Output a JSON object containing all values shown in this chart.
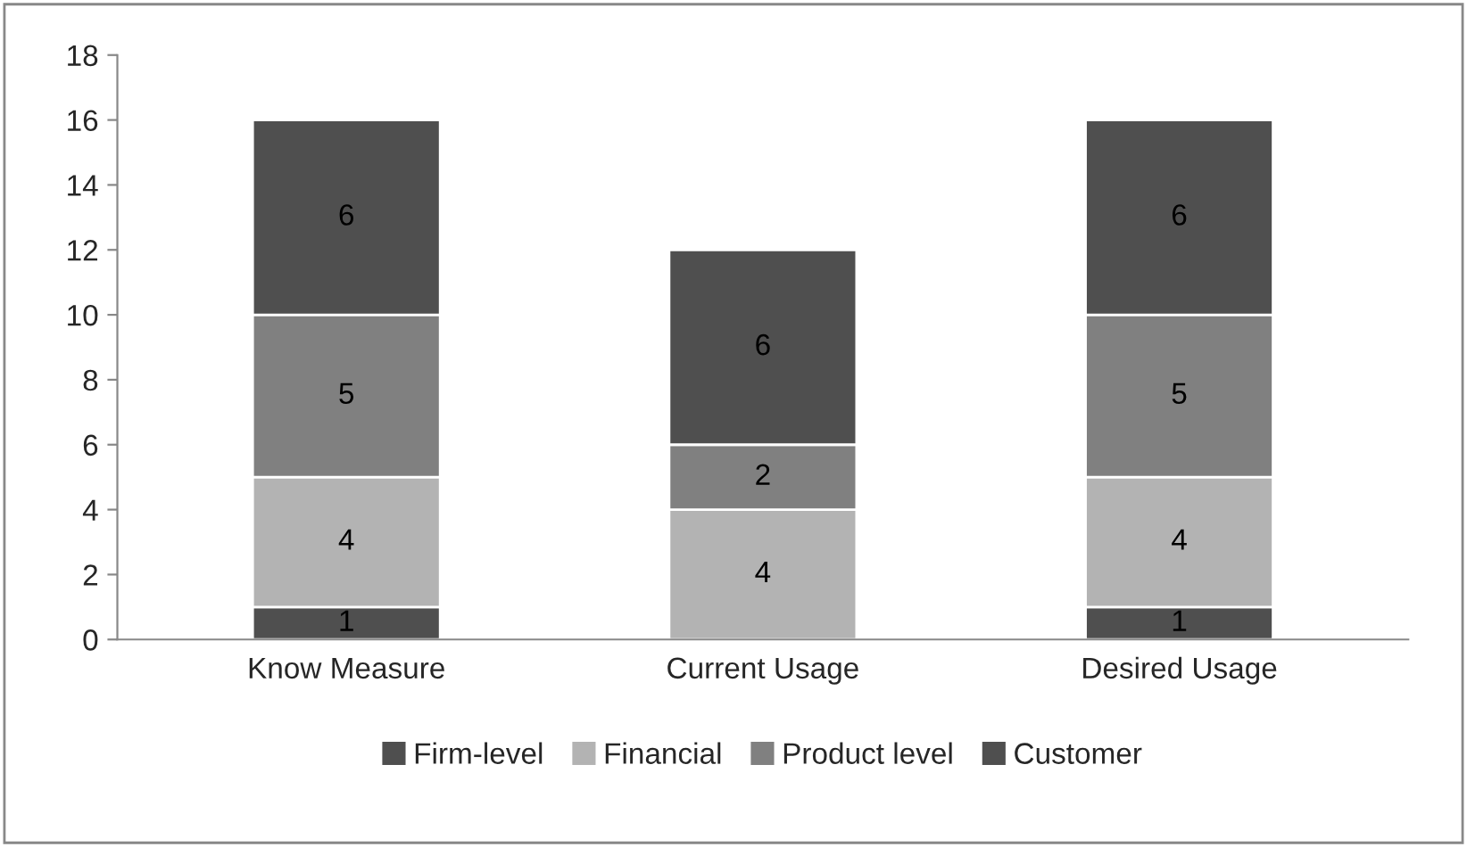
{
  "chart_data": {
    "type": "bar",
    "stacked": true,
    "categories": [
      "Know Measure",
      "Current Usage",
      "Desired Usage"
    ],
    "series": [
      {
        "name": "Firm-level",
        "color": "#4f4f4f",
        "values": [
          1,
          0,
          1
        ],
        "value_labels": [
          "1",
          null,
          "1"
        ]
      },
      {
        "name": "Financial",
        "color": "#b3b3b3",
        "values": [
          4,
          4,
          4
        ],
        "value_labels": [
          "4",
          "4",
          "4"
        ]
      },
      {
        "name": "Product level",
        "color": "#808080",
        "values": [
          5,
          2,
          5
        ],
        "value_labels": [
          "5",
          "2",
          "5"
        ]
      },
      {
        "name": "Customer",
        "color": "#4f4f4f",
        "values": [
          6,
          6,
          6
        ],
        "value_labels": [
          "6",
          "6",
          "6"
        ]
      }
    ],
    "ylim": [
      0,
      18
    ],
    "yticks": [
      0,
      2,
      4,
      6,
      8,
      10,
      12,
      14,
      16,
      18
    ],
    "grid": false,
    "legend": "bottom"
  }
}
